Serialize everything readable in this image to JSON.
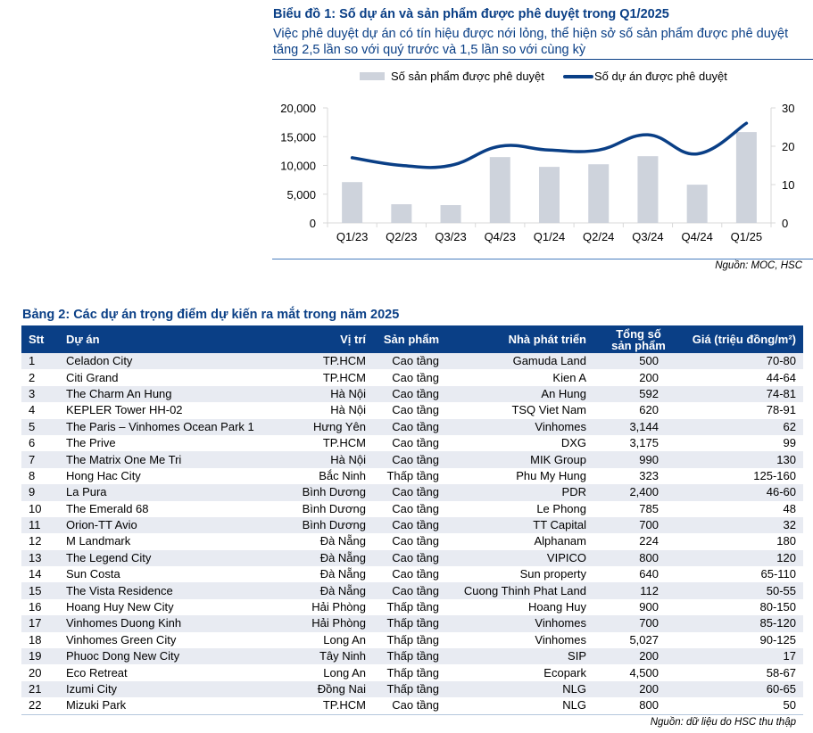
{
  "chart": {
    "title": "Biểu đồ 1: Số dự án và sản phẩm được phê duyệt trong Q1/2025",
    "subtitle": "Việc phê duyệt dự án có tín hiệu được nới lỏng, thể hiện sở số sản phẩm được phê duyệt tăng 2,5 lần so với quý trước và 1,5 lần so với cùng kỳ",
    "source": "Nguồn: MOC, HSC"
  },
  "chart_data": {
    "type": "bar",
    "title": "Biểu đồ 1: Số dự án và sản phẩm được phê duyệt trong Q1/2025",
    "categories": [
      "Q1/23",
      "Q2/23",
      "Q3/23",
      "Q4/23",
      "Q1/24",
      "Q2/24",
      "Q3/24",
      "Q4/24",
      "Q1/25"
    ],
    "series": [
      {
        "name": "Số sản phẩm được phê duyệt",
        "type": "bar",
        "axis": "left",
        "color": "#ced3dc",
        "values": [
          7100,
          3250,
          3100,
          11450,
          9750,
          10200,
          11600,
          6650,
          15800
        ]
      },
      {
        "name": "Số dự án được phê duyệt",
        "type": "line",
        "axis": "right",
        "color": "#0a3f86",
        "values": [
          17,
          15,
          15,
          20,
          19,
          19,
          23,
          18,
          26
        ]
      }
    ],
    "y_left": {
      "lim": [
        0,
        20000
      ],
      "ticks": [
        "0",
        "5,000",
        "10,000",
        "15,000",
        "20,000"
      ],
      "tick_values": [
        0,
        5000,
        10000,
        15000,
        20000
      ]
    },
    "y_right": {
      "lim": [
        0,
        30
      ],
      "ticks": [
        "0",
        "10",
        "20",
        "30"
      ],
      "tick_values": [
        0,
        10,
        20,
        30
      ]
    },
    "xlabel": "",
    "ylabel": "",
    "grid": false,
    "legend_position": "top-center"
  },
  "table": {
    "title": "Bảng 2: Các dự án trọng điểm dự kiến ra mắt trong năm 2025",
    "headers": {
      "stt": "Stt",
      "project": "Dự án",
      "location": "Vị trí",
      "product": "Sản phẩm",
      "developer": "Nhà phát triển",
      "total_line1": "Tổng số",
      "total_line2": "sản phẩm",
      "price": "Giá (triệu đồng/m²)"
    },
    "rows": [
      [
        "1",
        "Celadon City",
        "TP.HCM",
        "Cao tầng",
        "Gamuda Land",
        "500",
        "70-80"
      ],
      [
        "2",
        "Citi Grand",
        "TP.HCM",
        "Cao tầng",
        "Kien A",
        "200",
        "44-64"
      ],
      [
        "3",
        "The Charm An Hung",
        "Hà Nội",
        "Cao tầng",
        "An Hung",
        "592",
        "74-81"
      ],
      [
        "4",
        "KEPLER Tower HH-02",
        "Hà Nội",
        "Cao tầng",
        "TSQ Viet Nam",
        "620",
        "78-91"
      ],
      [
        "5",
        "The Paris – Vinhomes Ocean Park 1",
        "Hưng Yên",
        "Cao tầng",
        "Vinhomes",
        "3,144",
        "62"
      ],
      [
        "6",
        "The Prive",
        "TP.HCM",
        "Cao tầng",
        "DXG",
        "3,175",
        "99"
      ],
      [
        "7",
        "The Matrix One Me Tri",
        "Hà Nội",
        "Cao tầng",
        "MIK Group",
        "990",
        "130"
      ],
      [
        "8",
        "Hong Hac City",
        "Bắc Ninh",
        "Thấp tầng",
        "Phu My Hung",
        "323",
        "125-160"
      ],
      [
        "9",
        "La Pura",
        "Bình Dương",
        "Cao tầng",
        "PDR",
        "2,400",
        "46-60"
      ],
      [
        "10",
        "The Emerald 68",
        "Bình Dương",
        "Cao tầng",
        "Le Phong",
        "785",
        "48"
      ],
      [
        "11",
        "Orion-TT Avio",
        "Bình Dương",
        "Cao tầng",
        "TT Capital",
        "700",
        "32"
      ],
      [
        "12",
        "M Landmark",
        "Đà Nẵng",
        "Cao tầng",
        "Alphanam",
        "224",
        "180"
      ],
      [
        "13",
        "The Legend City",
        "Đà Nẵng",
        "Cao tầng",
        "VIPICO",
        "800",
        "120"
      ],
      [
        "14",
        "Sun Costa",
        "Đà Nẵng",
        "Cao tầng",
        "Sun property",
        "640",
        "65-110"
      ],
      [
        "15",
        "The Vista Residence",
        "Đà Nẵng",
        "Cao tầng",
        "Cuong Thinh Phat Land",
        "112",
        "50-55"
      ],
      [
        "16",
        "Hoang Huy New City",
        "Hải Phòng",
        "Thấp tầng",
        "Hoang Huy",
        "900",
        "80-150"
      ],
      [
        "17",
        "Vinhomes Duong Kinh",
        "Hải Phòng",
        "Thấp tầng",
        "Vinhomes",
        "700",
        "85-120"
      ],
      [
        "18",
        "Vinhomes Green City",
        "Long An",
        "Thấp tầng",
        "Vinhomes",
        "5,027",
        "90-125"
      ],
      [
        "19",
        "Phuoc Dong New City",
        "Tây Ninh",
        "Thấp tầng",
        "SIP",
        "200",
        "17"
      ],
      [
        "20",
        "Eco Retreat",
        "Long An",
        "Thấp tầng",
        "Ecopark",
        "4,500",
        "58-67"
      ],
      [
        "21",
        "Izumi City",
        "Đồng Nai",
        "Thấp tầng",
        "NLG",
        "200",
        "60-65"
      ],
      [
        "22",
        "Mizuki Park",
        "TP.HCM",
        "Cao tầng",
        "NLG",
        "800",
        "50"
      ]
    ],
    "source": "Nguồn: dữ liệu do HSC thu thập"
  }
}
